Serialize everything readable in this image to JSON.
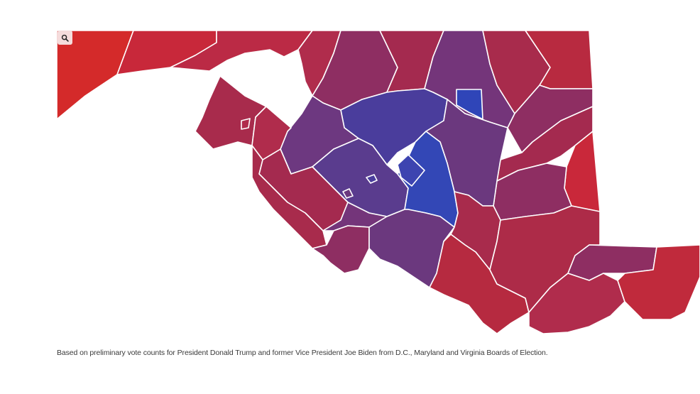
{
  "caption": "Based on preliminary vote counts for President Donald Trump and former Vice President Joe Biden from D.C., Maryland and Virginia Boards of Election.",
  "zoom_button": {
    "icon": "search-icon"
  },
  "colors": {
    "strong_trump": "#d42a2a",
    "trump": "#b9283f",
    "lean_trump": "#a32a50",
    "tossup_red": "#8e2e62",
    "tossup_purple": "#74357a",
    "lean_biden": "#5a3c8e",
    "biden": "#4a3d9c",
    "strong_biden": "#2f45b8",
    "border": "#ffffff",
    "background": "#ffffff"
  }
}
